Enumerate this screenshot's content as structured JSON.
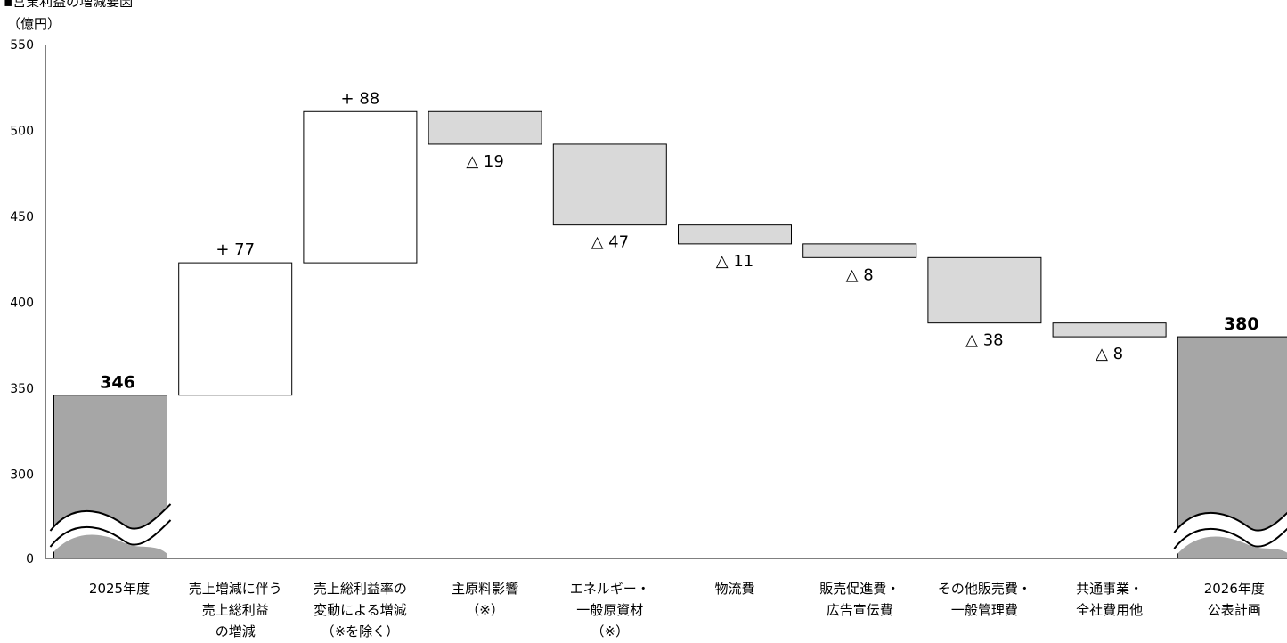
{
  "unit_label": "（億円）",
  "header_fragment": "▪営業利益の増減要因",
  "chart_data": {
    "type": "waterfall",
    "ylim": [
      0,
      550
    ],
    "axis_break": true,
    "y_ticks": [
      {
        "value": 550,
        "label": "550"
      },
      {
        "value": 500,
        "label": "500"
      },
      {
        "value": 450,
        "label": "450"
      },
      {
        "value": 400,
        "label": "400"
      },
      {
        "value": 350,
        "label": "350"
      },
      {
        "value": 300,
        "label": "300"
      },
      {
        "value": 0,
        "label": "0"
      }
    ],
    "bars": [
      {
        "category": [
          "2025年度"
        ],
        "kind": "total",
        "value": 346,
        "label": "346"
      },
      {
        "category": [
          "売上増減に伴う",
          "売上総利益",
          "の増減"
        ],
        "kind": "increase",
        "value": 77,
        "label": "+ 77"
      },
      {
        "category": [
          "売上総利益率の",
          "変動による増減",
          "（※を除く）"
        ],
        "kind": "increase",
        "value": 88,
        "label": "+ 88"
      },
      {
        "category": [
          "主原料影響",
          "（※）"
        ],
        "kind": "decrease",
        "value": 19,
        "label": "△ 19"
      },
      {
        "category": [
          "エネルギー・",
          "一般原資材",
          "（※）"
        ],
        "kind": "decrease",
        "value": 47,
        "label": "△ 47"
      },
      {
        "category": [
          "物流費"
        ],
        "kind": "decrease",
        "value": 11,
        "label": "△ 11"
      },
      {
        "category": [
          "販売促進費・",
          "広告宣伝費"
        ],
        "kind": "decrease",
        "value": 8,
        "label": "△ 8"
      },
      {
        "category": [
          "その他販売費・",
          "一般管理費"
        ],
        "kind": "decrease",
        "value": 38,
        "label": "△ 38"
      },
      {
        "category": [
          "共通事業・",
          "全社費用他"
        ],
        "kind": "decrease",
        "value": 8,
        "label": "△ 8"
      },
      {
        "category": [
          "2026年度",
          "公表計画"
        ],
        "kind": "total",
        "value": 380,
        "label": "380"
      }
    ],
    "colors": {
      "total": "#a6a6a6",
      "increase": "#ffffff",
      "decrease": "#d9d9d9",
      "border": "#000000"
    }
  }
}
